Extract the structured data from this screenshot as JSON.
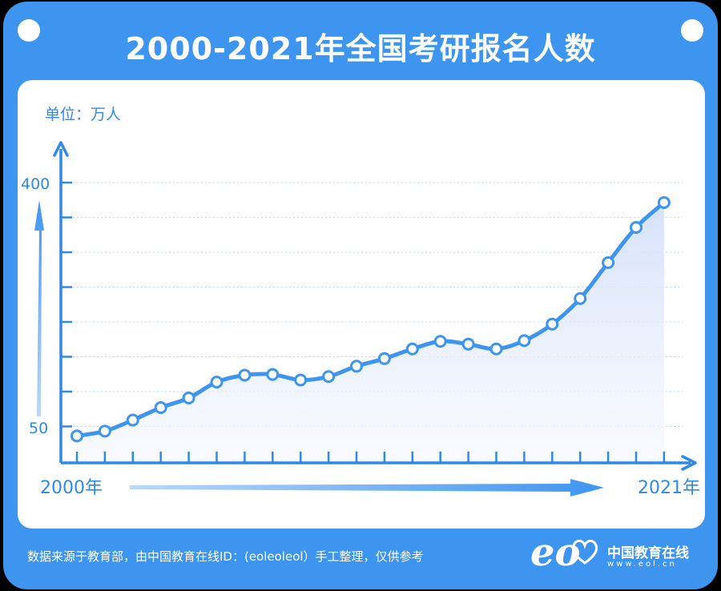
{
  "title": "2000-2021年全国考研报名人数",
  "unit_label": "单位：万人",
  "footer": "数据来源于教育部，由中国教育在线ID：(eoleoleol）手工整理，仅供参考",
  "logo": {
    "mark": "eo",
    "text": "中国教育在线",
    "url": "www.eol.cn"
  },
  "colors": {
    "background": "#3d95f0",
    "panel": "#ffffff",
    "line": "#3d95f0",
    "axis": "#2f8ae6",
    "area": "#dfe7fb"
  },
  "chart_data": {
    "type": "line",
    "title": "2000-2021年全国考研报名人数",
    "ylabel": "单位：万人",
    "xlabel": "",
    "x_start_label": "2000年",
    "x_end_label": "2021年",
    "y_tick_labels": [
      "50",
      "400"
    ],
    "ylim": [
      0,
      450
    ],
    "grid": true,
    "x": [
      "2000",
      "2001",
      "2002",
      "2003",
      "2004",
      "2005",
      "2006",
      "2007",
      "2008",
      "2009",
      "2010",
      "2011",
      "2012",
      "2013",
      "2014",
      "2015",
      "2016",
      "2017",
      "2018",
      "2019",
      "2020",
      "2021"
    ],
    "series": [
      {
        "values": [
          39,
          46,
          62,
          80,
          94,
          117,
          127,
          128,
          120,
          125,
          140,
          151,
          165,
          176,
          172,
          165,
          177,
          201,
          238,
          290,
          341,
          377
        ]
      }
    ]
  }
}
